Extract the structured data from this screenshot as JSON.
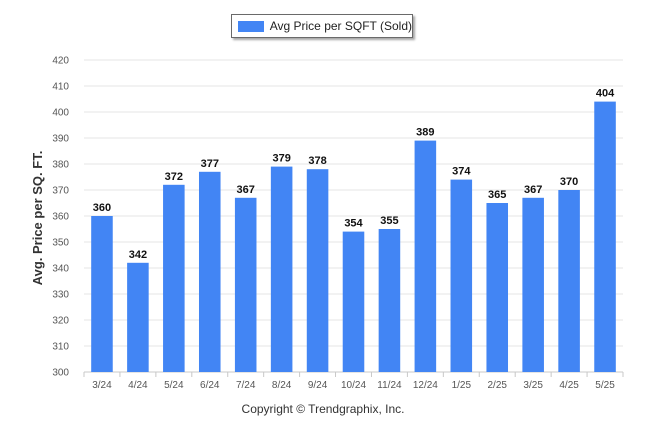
{
  "legend": {
    "label": "Avg Price per SQFT (Sold)"
  },
  "copyright": "Copyright © Trendgraphix, Inc.",
  "colors": {
    "bar": "#4285F4",
    "grid": "#e6e6e6",
    "axis": "#c8c8c8"
  },
  "chart_data": {
    "type": "bar",
    "title": "",
    "xlabel": "",
    "ylabel": "Avg. Price per SQ. FT.",
    "ylim": [
      300,
      420
    ],
    "yticks": [
      300,
      310,
      320,
      330,
      340,
      350,
      360,
      370,
      380,
      390,
      400,
      410,
      420
    ],
    "grid": true,
    "legend_position": "top-center",
    "categories": [
      "3/24",
      "4/24",
      "5/24",
      "6/24",
      "7/24",
      "8/24",
      "9/24",
      "10/24",
      "11/24",
      "12/24",
      "1/25",
      "2/25",
      "3/25",
      "4/25",
      "5/25"
    ],
    "series": [
      {
        "name": "Avg Price per SQFT (Sold)",
        "values": [
          360,
          342,
          372,
          377,
          367,
          379,
          378,
          354,
          355,
          389,
          374,
          365,
          367,
          370,
          404
        ]
      }
    ]
  }
}
